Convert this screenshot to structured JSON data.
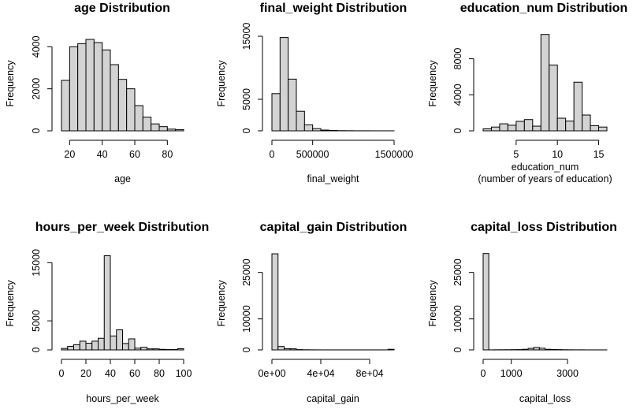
{
  "chart_data": [
    {
      "type": "bar",
      "title": "age Distribution",
      "xlabel": "age",
      "ylabel": "Frequency",
      "bin_edges": [
        15,
        20,
        25,
        30,
        35,
        40,
        45,
        50,
        55,
        60,
        65,
        70,
        75,
        80,
        85,
        90
      ],
      "values": [
        2400,
        4000,
        4150,
        4350,
        4200,
        3850,
        3150,
        2450,
        2000,
        1200,
        650,
        330,
        200,
        80,
        60
      ],
      "xlim": [
        15,
        90
      ],
      "ylim": [
        0,
        4500
      ],
      "xticks": [
        20,
        40,
        60,
        80
      ],
      "yticks": [
        0,
        2000,
        4000
      ],
      "xtick_labels": [
        "20",
        "40",
        "60",
        "80"
      ],
      "ytick_labels": [
        "0",
        "2000",
        "4000"
      ]
    },
    {
      "type": "bar",
      "title": "final_weight Distribution",
      "xlabel": "final_weight",
      "ylabel": "Frequency",
      "bin_edges": [
        0,
        100000,
        200000,
        300000,
        400000,
        500000,
        600000,
        700000,
        800000,
        900000,
        1000000,
        1100000,
        1200000,
        1300000,
        1400000,
        1500000
      ],
      "values": [
        5900,
        14800,
        8200,
        3100,
        950,
        350,
        120,
        60,
        30,
        20,
        10,
        10,
        5,
        5,
        5
      ],
      "xlim": [
        0,
        1500000
      ],
      "ylim": [
        0,
        15000
      ],
      "xticks": [
        0,
        500000,
        1500000
      ],
      "yticks": [
        0,
        5000,
        15000
      ],
      "xtick_labels": [
        "0",
        "500000",
        "1500000"
      ],
      "ytick_labels": [
        "0",
        "5000",
        "15000"
      ]
    },
    {
      "type": "bar",
      "title": "education_num Distribution",
      "xlabel": "education_num",
      "xlabel2": "(number of years of education)",
      "ylabel": "Frequency",
      "bin_edges": [
        1,
        2,
        3,
        4,
        5,
        6,
        7,
        8,
        9,
        10,
        11,
        12,
        13,
        14,
        15,
        16
      ],
      "values": [
        220,
        420,
        780,
        620,
        1050,
        1250,
        520,
        10700,
        7300,
        1400,
        1080,
        5400,
        1750,
        580,
        420
      ],
      "xlim": [
        1,
        16
      ],
      "ylim": [
        0,
        10500
      ],
      "xticks": [
        5,
        10,
        15
      ],
      "yticks": [
        0,
        4000,
        8000
      ],
      "xtick_labels": [
        "5",
        "10",
        "15"
      ],
      "ytick_labels": [
        "0",
        "4000",
        "8000"
      ]
    },
    {
      "type": "bar",
      "title": "hours_per_week Distribution",
      "xlabel": "hours_per_week",
      "ylabel": "Frequency",
      "bin_edges": [
        0,
        5,
        10,
        15,
        20,
        25,
        30,
        35,
        40,
        45,
        50,
        55,
        60,
        65,
        70,
        75,
        80,
        85,
        90,
        95,
        100
      ],
      "values": [
        250,
        600,
        900,
        1500,
        1150,
        1500,
        2000,
        16200,
        2400,
        3450,
        1100,
        1900,
        300,
        450,
        180,
        180,
        100,
        60,
        60,
        200
      ],
      "xlim": [
        0,
        100
      ],
      "ylim": [
        0,
        16000
      ],
      "xticks": [
        0,
        20,
        40,
        60,
        80,
        100
      ],
      "yticks": [
        0,
        5000,
        15000
      ],
      "xtick_labels": [
        "0",
        "20",
        "40",
        "60",
        "80",
        "100"
      ],
      "ytick_labels": [
        "0",
        "5000",
        "15000"
      ]
    },
    {
      "type": "bar",
      "title": "capital_gain Distribution",
      "xlabel": "capital_gain",
      "ylabel": "Frequency",
      "bin_edges": [
        0,
        5000,
        10000,
        15000,
        20000,
        25000,
        30000,
        35000,
        40000,
        45000,
        50000,
        55000,
        60000,
        65000,
        70000,
        75000,
        80000,
        85000,
        90000,
        95000,
        100000
      ],
      "values": [
        31000,
        1100,
        400,
        350,
        100,
        50,
        30,
        20,
        10,
        10,
        10,
        10,
        10,
        10,
        10,
        10,
        10,
        10,
        10,
        200
      ],
      "xlim": [
        0,
        100000
      ],
      "ylim": [
        0,
        30000
      ],
      "xticks": [
        0,
        40000,
        80000
      ],
      "yticks": [
        0,
        10000,
        25000
      ],
      "xtick_labels": [
        "0e+00",
        "4e+04",
        "8e+04"
      ],
      "ytick_labels": [
        "0",
        "10000",
        "25000"
      ]
    },
    {
      "type": "bar",
      "title": "capital_loss Distribution",
      "xlabel": "capital_loss",
      "ylabel": "Frequency",
      "bin_edges": [
        0,
        200,
        400,
        600,
        800,
        1000,
        1200,
        1400,
        1600,
        1800,
        2000,
        2200,
        2400,
        2600,
        2800,
        3000,
        3200,
        3400,
        3600,
        3800,
        4000,
        4200,
        4400
      ],
      "values": [
        31100,
        20,
        40,
        50,
        60,
        80,
        100,
        200,
        500,
        800,
        550,
        200,
        150,
        100,
        60,
        40,
        20,
        30,
        10,
        10,
        10,
        10
      ],
      "xlim": [
        0,
        4400
      ],
      "ylim": [
        0,
        30000
      ],
      "xticks": [
        0,
        1000,
        3000
      ],
      "yticks": [
        0,
        10000,
        25000
      ],
      "xtick_labels": [
        "0",
        "1000",
        "3000"
      ],
      "ytick_labels": [
        "0",
        "10000",
        "25000"
      ]
    }
  ]
}
